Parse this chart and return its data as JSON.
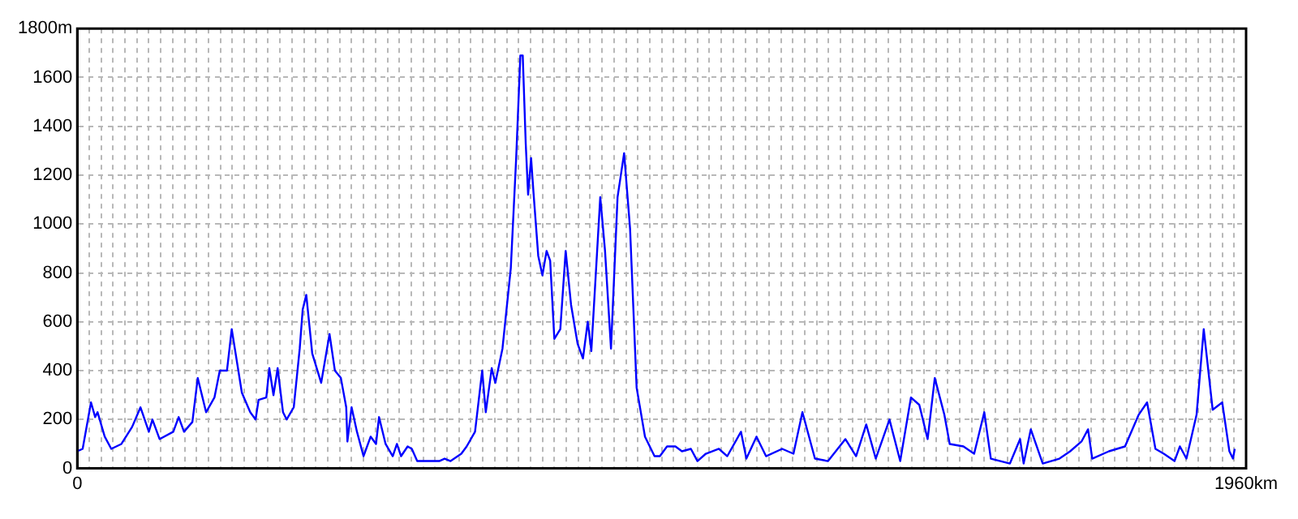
{
  "chart_data": {
    "type": "line",
    "marker": "none",
    "line_style": "solid",
    "grid": true,
    "x": [
      0,
      9,
      23,
      30,
      34,
      46,
      57,
      74,
      92,
      106,
      120,
      126,
      138,
      161,
      170,
      179,
      193,
      202,
      216,
      230,
      239,
      251,
      259,
      276,
      290,
      299,
      304,
      317,
      322,
      329,
      336,
      345,
      351,
      363,
      373,
      378,
      384,
      394,
      409,
      423,
      432,
      442,
      451,
      453,
      460,
      469,
      480,
      492,
      501,
      506,
      517,
      529,
      536,
      543,
      554,
      561,
      570,
      584,
      607,
      616,
      626,
      644,
      653,
      667,
      679,
      685,
      695,
      701,
      713,
      727,
      736,
      743,
      747,
      752,
      756,
      761,
      765,
      773,
      780,
      787,
      793,
      800,
      810,
      819,
      828,
      839,
      848,
      856,
      862,
      877,
      885,
      895,
      906,
      917,
      927,
      938,
      952,
      968,
      977,
      989,
      1003,
      1014,
      1029,
      1040,
      1054,
      1076,
      1090,
      1113,
      1122,
      1139,
      1155,
      1182,
      1201,
      1216,
      1237,
      1259,
      1288,
      1306,
      1323,
      1339,
      1362,
      1380,
      1398,
      1412,
      1426,
      1438,
      1454,
      1463,
      1486,
      1504,
      1521,
      1532,
      1564,
      1581,
      1587,
      1599,
      1619,
      1647,
      1665,
      1684,
      1695,
      1702,
      1730,
      1757,
      1780,
      1794,
      1808,
      1822,
      1840,
      1849,
      1860,
      1877,
      1889,
      1904,
      1920,
      1932,
      1938,
      1941
    ],
    "series": [
      {
        "color": "#0000ff",
        "values": [
          70,
          80,
          270,
          210,
          230,
          130,
          80,
          100,
          170,
          250,
          150,
          200,
          120,
          150,
          210,
          150,
          190,
          370,
          230,
          290,
          400,
          400,
          570,
          310,
          230,
          200,
          280,
          290,
          410,
          300,
          410,
          230,
          200,
          250,
          490,
          650,
          710,
          470,
          350,
          550,
          400,
          370,
          250,
          110,
          250,
          150,
          50,
          130,
          100,
          210,
          100,
          50,
          100,
          50,
          90,
          80,
          30,
          30,
          30,
          40,
          30,
          60,
          90,
          150,
          400,
          230,
          410,
          350,
          490,
          820,
          1270,
          1690,
          1690,
          1330,
          1120,
          1270,
          1130,
          870,
          790,
          890,
          850,
          530,
          570,
          890,
          670,
          510,
          450,
          600,
          480,
          1110,
          890,
          490,
          1110,
          1290,
          980,
          330,
          130,
          50,
          50,
          90,
          90,
          70,
          80,
          30,
          60,
          80,
          50,
          150,
          40,
          130,
          50,
          80,
          60,
          230,
          40,
          30,
          120,
          50,
          180,
          40,
          200,
          30,
          290,
          260,
          120,
          370,
          220,
          100,
          90,
          60,
          230,
          40,
          20,
          120,
          20,
          160,
          20,
          40,
          70,
          110,
          160,
          40,
          70,
          90,
          220,
          270,
          80,
          60,
          30,
          90,
          40,
          220,
          570,
          240,
          270,
          70,
          40,
          80
        ]
      }
    ],
    "xlim": [
      0,
      1960
    ],
    "ylim": [
      0,
      1800
    ],
    "yticks": [
      0,
      200,
      400,
      600,
      800,
      1000,
      1200,
      1400,
      1600,
      {
        "value": 1800,
        "label": "1800m"
      }
    ],
    "xticks": [
      0,
      {
        "value": 20,
        "label": null
      },
      {
        "value": 40,
        "label": null
      },
      {
        "value": 60,
        "label": null
      },
      {
        "value": 80,
        "label": null
      },
      {
        "value": 100,
        "label": null
      },
      {
        "value": 120,
        "label": null
      },
      {
        "value": 140,
        "label": null
      },
      {
        "value": 160,
        "label": null
      },
      {
        "value": 180,
        "label": null
      },
      {
        "value": 200,
        "label": null
      },
      {
        "value": 220,
        "label": null
      },
      {
        "value": 240,
        "label": null
      },
      {
        "value": 260,
        "label": null
      },
      {
        "value": 280,
        "label": null
      },
      {
        "value": 300,
        "label": null
      },
      {
        "value": 320,
        "label": null
      },
      {
        "value": 340,
        "label": null
      },
      {
        "value": 360,
        "label": null
      },
      {
        "value": 380,
        "label": null
      },
      {
        "value": 400,
        "label": null
      },
      {
        "value": 420,
        "label": null
      },
      {
        "value": 440,
        "label": null
      },
      {
        "value": 460,
        "label": null
      },
      {
        "value": 480,
        "label": null
      },
      {
        "value": 500,
        "label": null
      },
      {
        "value": 520,
        "label": null
      },
      {
        "value": 540,
        "label": null
      },
      {
        "value": 560,
        "label": null
      },
      {
        "value": 580,
        "label": null
      },
      {
        "value": 600,
        "label": null
      },
      {
        "value": 620,
        "label": null
      },
      {
        "value": 640,
        "label": null
      },
      {
        "value": 660,
        "label": null
      },
      {
        "value": 680,
        "label": null
      },
      {
        "value": 700,
        "label": null
      },
      {
        "value": 720,
        "label": null
      },
      {
        "value": 740,
        "label": null
      },
      {
        "value": 760,
        "label": null
      },
      {
        "value": 780,
        "label": null
      },
      {
        "value": 800,
        "label": null
      },
      {
        "value": 820,
        "label": null
      },
      {
        "value": 840,
        "label": null
      },
      {
        "value": 860,
        "label": null
      },
      {
        "value": 880,
        "label": null
      },
      {
        "value": 900,
        "label": null
      },
      {
        "value": 920,
        "label": null
      },
      {
        "value": 940,
        "label": null
      },
      {
        "value": 960,
        "label": null
      },
      {
        "value": 980,
        "label": null
      },
      {
        "value": 1000,
        "label": null
      },
      {
        "value": 1020,
        "label": null
      },
      {
        "value": 1040,
        "label": null
      },
      {
        "value": 1060,
        "label": null
      },
      {
        "value": 1080,
        "label": null
      },
      {
        "value": 1100,
        "label": null
      },
      {
        "value": 1120,
        "label": null
      },
      {
        "value": 1140,
        "label": null
      },
      {
        "value": 1160,
        "label": null
      },
      {
        "value": 1180,
        "label": null
      },
      {
        "value": 1200,
        "label": null
      },
      {
        "value": 1220,
        "label": null
      },
      {
        "value": 1240,
        "label": null
      },
      {
        "value": 1260,
        "label": null
      },
      {
        "value": 1280,
        "label": null
      },
      {
        "value": 1300,
        "label": null
      },
      {
        "value": 1320,
        "label": null
      },
      {
        "value": 1340,
        "label": null
      },
      {
        "value": 1360,
        "label": null
      },
      {
        "value": 1380,
        "label": null
      },
      {
        "value": 1400,
        "label": null
      },
      {
        "value": 1420,
        "label": null
      },
      {
        "value": 1440,
        "label": null
      },
      {
        "value": 1460,
        "label": null
      },
      {
        "value": 1480,
        "label": null
      },
      {
        "value": 1500,
        "label": null
      },
      {
        "value": 1520,
        "label": null
      },
      {
        "value": 1540,
        "label": null
      },
      {
        "value": 1560,
        "label": null
      },
      {
        "value": 1580,
        "label": null
      },
      {
        "value": 1600,
        "label": null
      },
      {
        "value": 1620,
        "label": null
      },
      {
        "value": 1640,
        "label": null
      },
      {
        "value": 1660,
        "label": null
      },
      {
        "value": 1680,
        "label": null
      },
      {
        "value": 1700,
        "label": null
      },
      {
        "value": 1720,
        "label": null
      },
      {
        "value": 1740,
        "label": null
      },
      {
        "value": 1760,
        "label": null
      },
      {
        "value": 1780,
        "label": null
      },
      {
        "value": 1800,
        "label": null
      },
      {
        "value": 1820,
        "label": null
      },
      {
        "value": 1840,
        "label": null
      },
      {
        "value": 1860,
        "label": null
      },
      {
        "value": 1880,
        "label": null
      },
      {
        "value": 1900,
        "label": null
      },
      {
        "value": 1920,
        "label": null
      },
      {
        "value": 1940,
        "label": null
      },
      {
        "value": 1960,
        "label": "1960km"
      }
    ]
  }
}
